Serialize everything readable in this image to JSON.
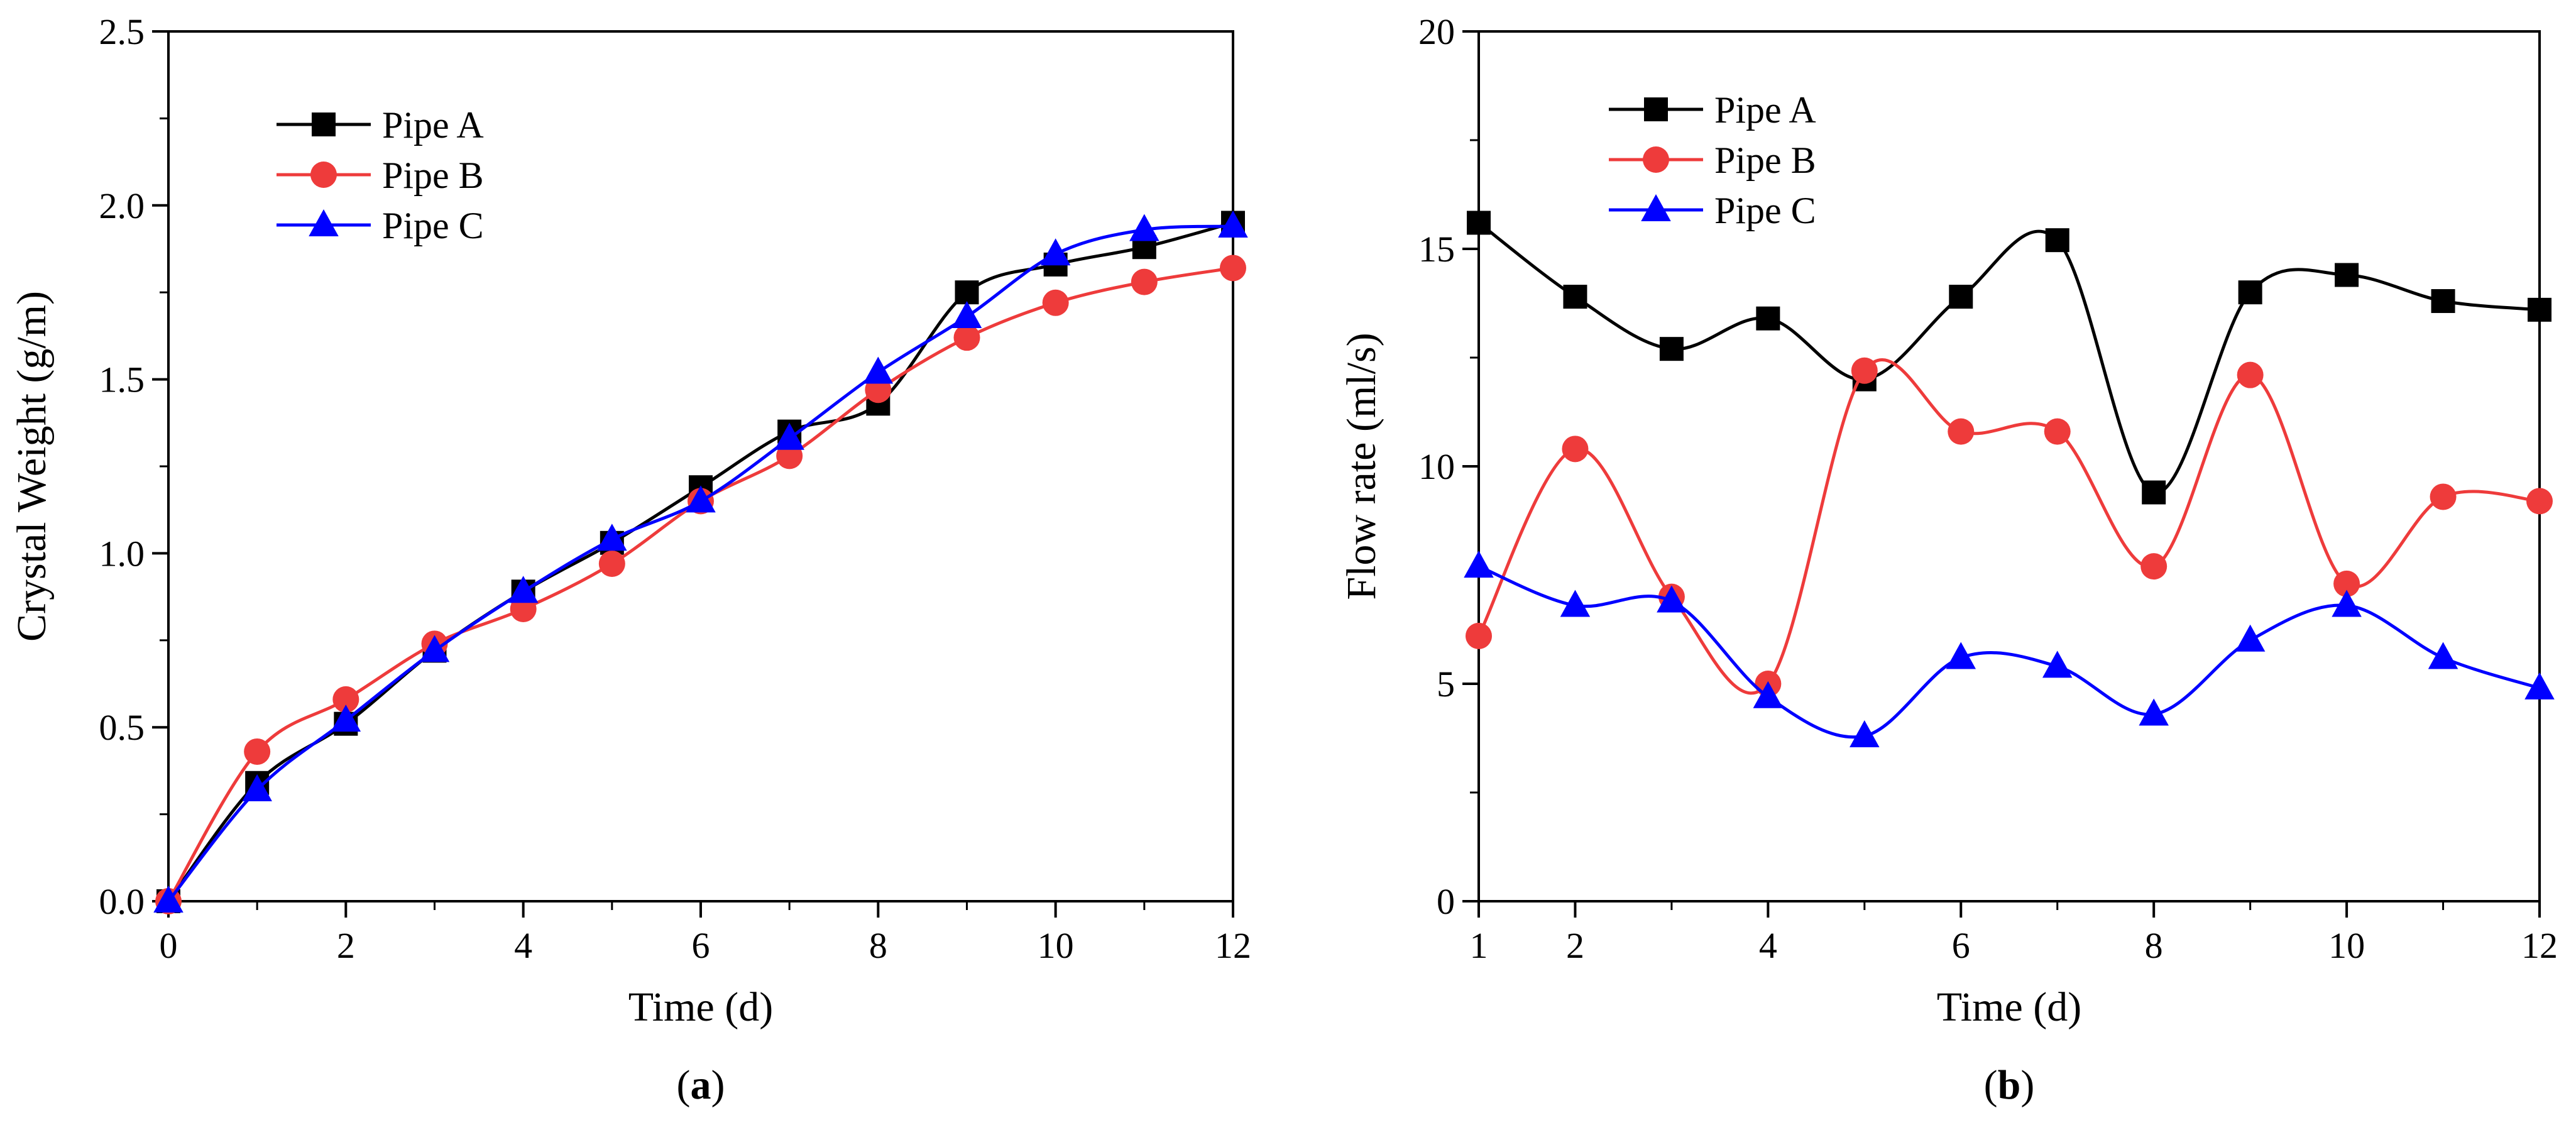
{
  "chart_data": [
    {
      "type": "line",
      "panel_label": "a",
      "xlabel": "Time (d)",
      "ylabel": "Crystal Weight (g/m)",
      "xlim": [
        0,
        12
      ],
      "ylim": [
        0,
        2.5
      ],
      "xticks": [
        0,
        2,
        4,
        6,
        8,
        10,
        12
      ],
      "xtick_labels": [
        "0",
        "2",
        "4",
        "6",
        "8",
        "10",
        "12"
      ],
      "yticks": [
        0,
        0.5,
        1.0,
        1.5,
        2.0,
        2.5
      ],
      "ytick_labels": [
        "0.0",
        "0.5",
        "1.0",
        "1.5",
        "2.0",
        "2.5"
      ],
      "grid": false,
      "legend_position": "top-left",
      "x": [
        0,
        1,
        2,
        3,
        4,
        5,
        6,
        7,
        8,
        9,
        10,
        11,
        12
      ],
      "series": [
        {
          "name": "Pipe A",
          "color": "#000000",
          "marker": "square",
          "values": [
            0.0,
            0.34,
            0.51,
            0.72,
            0.89,
            1.03,
            1.19,
            1.35,
            1.43,
            1.75,
            1.83,
            1.88,
            1.95
          ]
        },
        {
          "name": "Pipe B",
          "color": "#ee3b3b",
          "marker": "circle",
          "values": [
            0.0,
            0.43,
            0.58,
            0.74,
            0.84,
            0.97,
            1.15,
            1.28,
            1.47,
            1.62,
            1.72,
            1.78,
            1.82
          ]
        },
        {
          "name": "Pipe C",
          "color": "#0000ff",
          "marker": "triangle",
          "values": [
            0.0,
            0.32,
            0.52,
            0.72,
            0.89,
            1.04,
            1.15,
            1.33,
            1.52,
            1.68,
            1.86,
            1.93,
            1.94
          ]
        }
      ]
    },
    {
      "type": "line",
      "panel_label": "b",
      "xlabel": "Time (d)",
      "ylabel": "Flow rate (ml/s)",
      "xlim": [
        1,
        12
      ],
      "ylim": [
        0,
        20
      ],
      "xticks": [
        1,
        2,
        4,
        6,
        8,
        10,
        12
      ],
      "xtick_labels": [
        "1",
        "2",
        "4",
        "6",
        "8",
        "10",
        "12"
      ],
      "yticks": [
        0,
        5,
        10,
        15,
        20
      ],
      "ytick_labels": [
        "0",
        "5",
        "10",
        "15",
        "20"
      ],
      "grid": false,
      "legend_position": "top-left",
      "x": [
        1,
        2,
        3,
        4,
        5,
        6,
        7,
        8,
        9,
        10,
        11,
        12
      ],
      "series": [
        {
          "name": "Pipe A",
          "color": "#000000",
          "marker": "square",
          "values": [
            15.6,
            13.9,
            12.7,
            13.4,
            12.0,
            13.9,
            15.2,
            9.4,
            14.0,
            14.4,
            13.8,
            13.6
          ]
        },
        {
          "name": "Pipe B",
          "color": "#ee3b3b",
          "marker": "circle",
          "values": [
            6.1,
            10.4,
            7.0,
            5.0,
            12.2,
            10.8,
            10.8,
            7.7,
            12.1,
            7.3,
            9.3,
            9.2
          ]
        },
        {
          "name": "Pipe C",
          "color": "#0000ff",
          "marker": "triangle",
          "values": [
            7.7,
            6.8,
            6.9,
            4.7,
            3.8,
            5.6,
            5.4,
            4.3,
            6.0,
            6.8,
            5.6,
            4.9
          ]
        }
      ]
    }
  ]
}
